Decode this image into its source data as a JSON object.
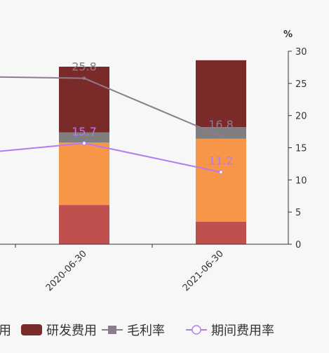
{
  "chart_data": {
    "type": "bar",
    "categories": [
      "2020-06-30",
      "2021-06-30"
    ],
    "stacked_series": [
      {
        "name": "",
        "color": "#c0504d",
        "values": [
          6.1,
          3.5
        ]
      },
      {
        "name": "",
        "color": "#f79646",
        "values": [
          9.7,
          12.9
        ]
      },
      {
        "name": "",
        "color": "#7f7f7f",
        "values": [
          1.6,
          1.8
        ]
      },
      {
        "name": "研发费用",
        "color": "#7b2a2a",
        "values": [
          10.2,
          10.4
        ]
      }
    ],
    "line_series": [
      {
        "name": "毛利率",
        "color": "#8d7b8f",
        "marker": "square",
        "values": [
          25.8,
          16.8
        ],
        "labels": [
          "25.8",
          "16.8"
        ],
        "prev_value": 26.0
      },
      {
        "name": "期间费用率",
        "color": "#b57bee",
        "marker": "circle",
        "values": [
          15.7,
          11.2
        ],
        "labels": [
          "15.7",
          "11.2"
        ],
        "prev_value": 14.4
      }
    ],
    "y_axis": {
      "unit": "%",
      "min": 0,
      "max": 30,
      "ticks": [
        "0",
        "5",
        "10",
        "15",
        "20",
        "25",
        "30"
      ],
      "position": "right"
    },
    "legend": {
      "position": "bottom",
      "items": [
        {
          "text": "用",
          "color": "#c0504d",
          "kind": "rect"
        },
        {
          "text": "研发费用",
          "color": "#7b2a2a",
          "kind": "rect"
        },
        {
          "text": "毛利率",
          "color": "#8d7b8f",
          "kind": "line-square"
        },
        {
          "text": "期间费用率",
          "color": "#b57bee",
          "kind": "line-circle"
        }
      ]
    },
    "grid": false
  }
}
